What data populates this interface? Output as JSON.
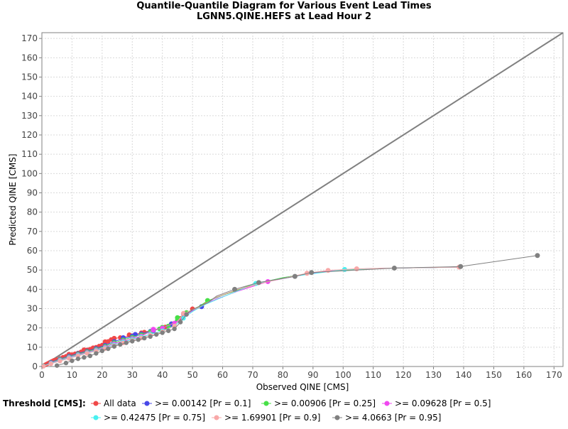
{
  "chart_data": {
    "type": "scatter",
    "title": "Quantile-Quantile Diagram for Various Event Lead Times",
    "subtitle": "LGNN5.QINE.HEFS at Lead Hour 2",
    "xlabel": "Observed QINE [CMS]",
    "ylabel": "Predicted QINE [CMS]",
    "xlim": [
      0,
      173
    ],
    "ylim": [
      0,
      173
    ],
    "xticks": [
      0,
      10,
      20,
      30,
      40,
      50,
      60,
      70,
      80,
      90,
      100,
      110,
      120,
      130,
      140,
      150,
      160,
      170
    ],
    "yticks": [
      0,
      10,
      20,
      30,
      40,
      50,
      60,
      70,
      80,
      90,
      100,
      110,
      120,
      130,
      140,
      150,
      160,
      170
    ],
    "grid": true,
    "diagonal_color": "#808080",
    "legend_placement": "bottom",
    "legend_title": "Threshold [CMS]:",
    "series": [
      {
        "name": "All data",
        "color": "#f04848",
        "points": [
          [
            0.5,
            0.3
          ],
          [
            1,
            0.8
          ],
          [
            1.5,
            1.2
          ],
          [
            2,
            1.6
          ],
          [
            2.5,
            2
          ],
          [
            3,
            2.4
          ],
          [
            3.5,
            2.8
          ],
          [
            4,
            3.2
          ],
          [
            5,
            3.6
          ],
          [
            6,
            4.2
          ],
          [
            7,
            4.8
          ],
          [
            8,
            5.3
          ],
          [
            9,
            5.8
          ],
          [
            10,
            6.2
          ],
          [
            11,
            6.6
          ],
          [
            12,
            7
          ],
          [
            13,
            7.6
          ],
          [
            14,
            8.1
          ],
          [
            15,
            8.6
          ],
          [
            16,
            9
          ],
          [
            17,
            9.4
          ],
          [
            18,
            10
          ],
          [
            19,
            10.6
          ],
          [
            20,
            11.1
          ],
          [
            21,
            12
          ],
          [
            22,
            13
          ],
          [
            23,
            14
          ],
          [
            24,
            14.5
          ],
          [
            26,
            15
          ],
          [
            30,
            16
          ],
          [
            33,
            17.5
          ],
          [
            40,
            20
          ],
          [
            44,
            22
          ],
          [
            46,
            25
          ],
          [
            48,
            28
          ],
          [
            50,
            29.5
          ],
          [
            52,
            31
          ],
          [
            58,
            36
          ],
          [
            73,
            43.5
          ],
          [
            90,
            48.5
          ],
          [
            95,
            49.5
          ],
          [
            104,
            50.5
          ],
          [
            117,
            51
          ],
          [
            138,
            51.5
          ]
        ],
        "marks_at": [
          [
            9,
            6.3
          ],
          [
            14,
            8.6
          ],
          [
            17,
            9.6
          ],
          [
            21,
            12.8
          ],
          [
            24,
            14.6
          ],
          [
            29,
            16.4
          ],
          [
            34,
            17.7
          ],
          [
            41,
            20.4
          ],
          [
            50,
            29.8
          ]
        ]
      },
      {
        "name": ">= 0.00142 [Pr = 0.1]",
        "color": "#4848e8",
        "points": [
          [
            0.5,
            0.3
          ],
          [
            3,
            2.2
          ],
          [
            6,
            3.9
          ],
          [
            9,
            5.4
          ],
          [
            12,
            6.8
          ],
          [
            15,
            8
          ],
          [
            18,
            9.4
          ],
          [
            21,
            11
          ],
          [
            24,
            13
          ],
          [
            27,
            14.4
          ],
          [
            30,
            15.8
          ],
          [
            33,
            17
          ],
          [
            36,
            18.3
          ],
          [
            40,
            20
          ],
          [
            43,
            21.5
          ],
          [
            45,
            24
          ],
          [
            47,
            27
          ],
          [
            50,
            29
          ],
          [
            53,
            31
          ],
          [
            57,
            35
          ],
          [
            60,
            37
          ],
          [
            70,
            42.5
          ],
          [
            80,
            46
          ],
          [
            90,
            48.5
          ],
          [
            100,
            50
          ],
          [
            117,
            51
          ],
          [
            138,
            51.5
          ]
        ],
        "marks_at": [
          [
            27,
            14.9
          ],
          [
            31,
            16.6
          ],
          [
            37,
            18.6
          ],
          [
            43,
            22.1
          ],
          [
            53,
            31
          ]
        ]
      },
      {
        "name": ">= 0.00906 [Pr = 0.25]",
        "color": "#48e048",
        "points": [
          [
            0.5,
            0.3
          ],
          [
            3,
            2
          ],
          [
            6,
            3.7
          ],
          [
            9,
            5.1
          ],
          [
            12,
            6.5
          ],
          [
            15,
            7.7
          ],
          [
            18,
            9
          ],
          [
            21,
            10.5
          ],
          [
            24,
            12.4
          ],
          [
            27,
            13.8
          ],
          [
            30,
            15.2
          ],
          [
            33,
            16.5
          ],
          [
            36,
            18
          ],
          [
            39,
            19.5
          ],
          [
            42,
            21
          ],
          [
            45,
            24.5
          ],
          [
            48,
            28
          ],
          [
            52,
            31
          ],
          [
            55,
            34
          ],
          [
            60,
            37
          ],
          [
            70,
            42.5
          ],
          [
            80,
            46
          ],
          [
            90,
            48.5
          ],
          [
            100,
            50
          ],
          [
            117,
            51
          ],
          [
            138,
            51.5
          ]
        ],
        "marks_at": [
          [
            40,
            20.3
          ],
          [
            45,
            25.3
          ],
          [
            55,
            34.2
          ]
        ]
      },
      {
        "name": ">= 0.09628 [Pr = 0.5]",
        "color": "#f048f0",
        "points": [
          [
            0.5,
            0.2
          ],
          [
            3,
            1.8
          ],
          [
            6,
            3.4
          ],
          [
            9,
            4.8
          ],
          [
            12,
            6.1
          ],
          [
            15,
            7.3
          ],
          [
            18,
            8.6
          ],
          [
            21,
            10
          ],
          [
            24,
            11.8
          ],
          [
            27,
            13.2
          ],
          [
            30,
            14.5
          ],
          [
            33,
            15.8
          ],
          [
            37,
            18.8
          ],
          [
            40,
            20
          ],
          [
            44,
            22.5
          ],
          [
            48,
            27
          ],
          [
            52,
            30.5
          ],
          [
            58,
            35
          ],
          [
            65,
            39
          ],
          [
            75,
            44
          ],
          [
            85,
            47
          ],
          [
            95,
            49.5
          ],
          [
            104,
            50.5
          ],
          [
            117,
            51
          ],
          [
            138,
            51.5
          ]
        ],
        "marks_at": [
          [
            37,
            19.3
          ],
          [
            75,
            44
          ]
        ]
      },
      {
        "name": ">= 0.42475 [Pr = 0.75]",
        "color": "#48f0f0",
        "points": [
          [
            0.5,
            0.2
          ],
          [
            3,
            1.6
          ],
          [
            6,
            3.1
          ],
          [
            9,
            4.5
          ],
          [
            12,
            5.8
          ],
          [
            15,
            7
          ],
          [
            18,
            8.3
          ],
          [
            21,
            9.6
          ],
          [
            24,
            11.2
          ],
          [
            27,
            12.7
          ],
          [
            30,
            14
          ],
          [
            33,
            15.3
          ],
          [
            36,
            16.7
          ],
          [
            40,
            18.5
          ],
          [
            44,
            21
          ],
          [
            47,
            25
          ],
          [
            50,
            28.5
          ],
          [
            54,
            32
          ],
          [
            60,
            36
          ],
          [
            71,
            43
          ],
          [
            85,
            47
          ],
          [
            100,
            50.2
          ],
          [
            117,
            51
          ],
          [
            138,
            51.5
          ]
        ],
        "marks_at": [
          [
            71,
            43
          ],
          [
            100.5,
            50.3
          ]
        ]
      },
      {
        "name": ">= 1.69901 [Pr = 0.9]",
        "color": "#f8a8a8",
        "points": [
          [
            0.5,
            0.1
          ],
          [
            3,
            1.4
          ],
          [
            6,
            2.8
          ],
          [
            9,
            4.2
          ],
          [
            12,
            5.5
          ],
          [
            15,
            6.8
          ],
          [
            18,
            8
          ],
          [
            21,
            9.3
          ],
          [
            24,
            10.8
          ],
          [
            27,
            12.2
          ],
          [
            30,
            13.5
          ],
          [
            33,
            14.8
          ],
          [
            36,
            16.2
          ],
          [
            40,
            18
          ],
          [
            44,
            21
          ],
          [
            47,
            27.5
          ],
          [
            52,
            30.5
          ],
          [
            58,
            36
          ],
          [
            65,
            40
          ],
          [
            75,
            44
          ],
          [
            88,
            48.3
          ],
          [
            95,
            49.8
          ],
          [
            104,
            50.6
          ],
          [
            117,
            51
          ],
          [
            138.5,
            51.5
          ]
        ],
        "marks_at": [
          [
            47,
            27.5
          ],
          [
            88,
            48.3
          ],
          [
            95,
            49.8
          ],
          [
            104.5,
            50.6
          ],
          [
            138.5,
            51.5
          ]
        ]
      },
      {
        "name": ">= 4.0663 [Pr = 0.95]",
        "color": "#808080",
        "points": [
          [
            5,
            0.5
          ],
          [
            8,
            1.8
          ],
          [
            10,
            3
          ],
          [
            12,
            4
          ],
          [
            14,
            4.7
          ],
          [
            16,
            5.5
          ],
          [
            18,
            6.8
          ],
          [
            20,
            8.1
          ],
          [
            22,
            9.2
          ],
          [
            24,
            10.4
          ],
          [
            26,
            11.4
          ],
          [
            28,
            12.3
          ],
          [
            30,
            13.1
          ],
          [
            32,
            13.9
          ],
          [
            34,
            14.7
          ],
          [
            36,
            15.5
          ],
          [
            38,
            16.6
          ],
          [
            40,
            17.5
          ],
          [
            42,
            18.5
          ],
          [
            44,
            19.5
          ],
          [
            46,
            23
          ],
          [
            48,
            27
          ],
          [
            50,
            29.5
          ],
          [
            55,
            33
          ],
          [
            58,
            36.5
          ],
          [
            64,
            40
          ],
          [
            72,
            43.5
          ],
          [
            84,
            46.7
          ],
          [
            89.5,
            48.7
          ],
          [
            117,
            51
          ],
          [
            139,
            51.8
          ],
          [
            164.5,
            57.5
          ]
        ],
        "marks_at": [
          [
            64,
            40
          ],
          [
            72,
            43.5
          ],
          [
            84,
            46.7
          ],
          [
            89.5,
            48.7
          ],
          [
            117,
            51
          ],
          [
            139,
            51.8
          ],
          [
            164.5,
            57.5
          ]
        ]
      }
    ]
  }
}
